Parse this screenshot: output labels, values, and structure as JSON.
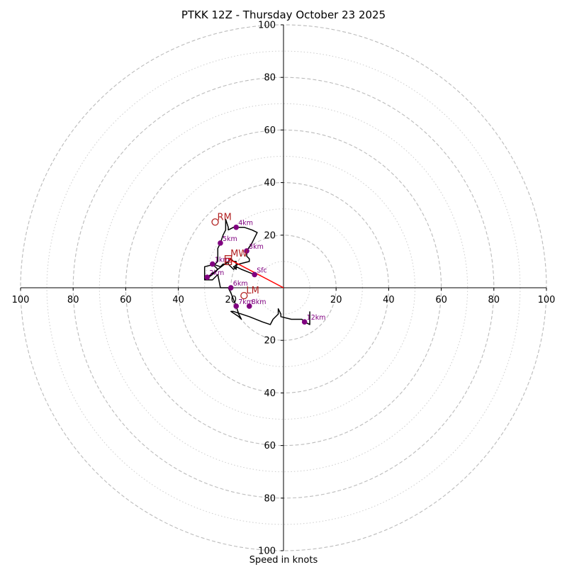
{
  "chart_data": {
    "type": "hodograph",
    "title": "PTKK 12Z - Thursday October 23 2025",
    "xlabel": "Speed in knots",
    "ylabel": "",
    "xlim": [
      -100,
      100
    ],
    "ylim": [
      -100,
      100
    ],
    "ring_major": [
      20,
      40,
      60,
      80,
      100
    ],
    "ring_minor": [
      10,
      30,
      50,
      70,
      90
    ],
    "tick_values": [
      100,
      80,
      60,
      40,
      20
    ],
    "trace": [
      [
        10,
        -9
      ],
      [
        10,
        -14
      ],
      [
        8,
        -13
      ],
      [
        7,
        -12
      ],
      [
        3,
        -12
      ],
      [
        -1,
        -11
      ],
      [
        -1,
        -10
      ],
      [
        -2,
        -8
      ],
      [
        -2,
        -10
      ],
      [
        -4,
        -12
      ],
      [
        -5,
        -14
      ],
      [
        -8,
        -13
      ],
      [
        -13,
        -11
      ],
      [
        -16,
        -10
      ],
      [
        -19,
        -9
      ],
      [
        -20,
        -9
      ],
      [
        -17,
        -11
      ],
      [
        -16,
        -12
      ],
      [
        -17,
        -10
      ],
      [
        -18,
        -7
      ],
      [
        -20,
        -2
      ],
      [
        -21,
        0
      ],
      [
        -24,
        0
      ],
      [
        -25,
        5
      ],
      [
        -27,
        3
      ],
      [
        -30,
        3
      ],
      [
        -30,
        8
      ],
      [
        -26,
        9
      ],
      [
        -25,
        10
      ],
      [
        -25,
        12
      ],
      [
        -25,
        15
      ],
      [
        -24,
        17
      ],
      [
        -23,
        20
      ],
      [
        -22,
        22
      ],
      [
        -22,
        26
      ],
      [
        -21,
        23
      ],
      [
        -21,
        22
      ],
      [
        -19,
        23
      ],
      [
        -15,
        23
      ],
      [
        -12,
        22
      ],
      [
        -10,
        21
      ],
      [
        -12,
        17
      ],
      [
        -14,
        14
      ],
      [
        -14,
        12
      ],
      [
        -13,
        11
      ],
      [
        -13,
        10
      ],
      [
        -17,
        9
      ],
      [
        -19,
        8
      ],
      [
        -18,
        7
      ],
      [
        -18,
        10
      ],
      [
        -19,
        10
      ],
      [
        -20,
        11
      ],
      [
        -21,
        10
      ],
      [
        -22,
        9
      ],
      [
        -23,
        9
      ],
      [
        -24,
        8
      ],
      [
        -27,
        9
      ],
      [
        -25,
        7
      ],
      [
        -27,
        5
      ],
      [
        -30,
        3
      ],
      [
        -29,
        4
      ],
      [
        -21,
        10
      ],
      [
        -21,
        9
      ],
      [
        -19,
        7
      ],
      [
        -18,
        8
      ],
      [
        -16,
        7
      ],
      [
        -11,
        5
      ]
    ],
    "markers": [
      {
        "label": "Sfc",
        "u": -11,
        "v": 5
      },
      {
        "label": "3km",
        "u": -14,
        "v": 14
      },
      {
        "label": "4km",
        "u": -18,
        "v": 23
      },
      {
        "label": "5km",
        "u": -24,
        "v": 17
      },
      {
        "label": "6km",
        "u": -20,
        "v": 0
      },
      {
        "label": "7km",
        "u": -18,
        "v": -7
      },
      {
        "label": "8km",
        "u": -13,
        "v": -7
      },
      {
        "label": "12km",
        "u": 8,
        "v": -13
      },
      {
        "label": "1km",
        "u": -27,
        "v": 9
      },
      {
        "label": "2km",
        "u": -29,
        "v": 4
      }
    ],
    "storm_motions": [
      {
        "label": "RM",
        "u": -26,
        "v": 25,
        "symbol": "circle"
      },
      {
        "label": "LM",
        "u": -15,
        "v": -3,
        "symbol": "circle"
      },
      {
        "label": "MW",
        "u": -21,
        "v": 11,
        "symbol": "square"
      },
      {
        "label": "",
        "u": -21,
        "v": 10,
        "symbol": "square"
      }
    ],
    "shear_vector": {
      "from": [
        0,
        0
      ],
      "to": [
        -21,
        11
      ]
    },
    "colors": {
      "trace": "#000000",
      "marker": "#800080",
      "marker_label": "#800080",
      "storm_motion": "#b22222",
      "shear_vector": "#ff0000",
      "ring_major": "#bbbbbb",
      "ring_minor": "#cccccc"
    }
  }
}
